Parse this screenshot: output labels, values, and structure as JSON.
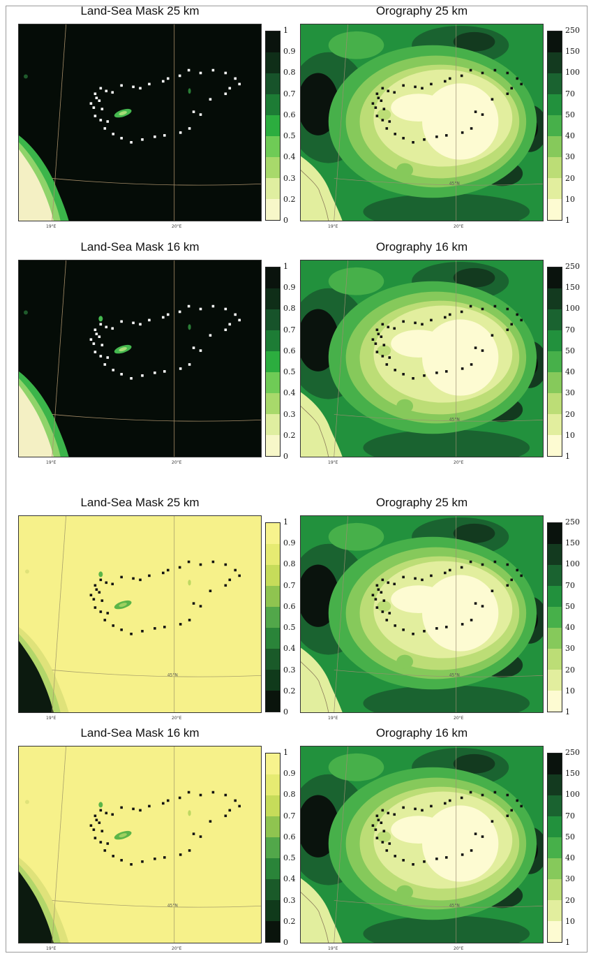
{
  "panels": [
    {
      "title": "Land-Sea Mask 25 km",
      "kind": "mask",
      "theme": "dark",
      "lon_labels": [
        "19°E",
        "20°E"
      ],
      "lat_label": ""
    },
    {
      "title": "Orography 25 km",
      "kind": "oro",
      "theme": "green",
      "lon_labels": [
        "19°E",
        "20°E"
      ],
      "lat_label": "45°N"
    },
    {
      "title": "Land-Sea Mask 16 km",
      "kind": "mask",
      "theme": "dark",
      "lon_labels": [
        "19°E",
        "20°E"
      ],
      "lat_label": ""
    },
    {
      "title": "Orography 16 km",
      "kind": "oro",
      "theme": "green",
      "lon_labels": [
        "19°E",
        "20°E"
      ],
      "lat_label": "45°N"
    },
    {
      "title": "Land-Sea Mask 25 km",
      "kind": "mask",
      "theme": "light",
      "lon_labels": [
        "19°E",
        "20°E"
      ],
      "lat_label": "45°N"
    },
    {
      "title": "Orography 25 km",
      "kind": "oro",
      "theme": "green",
      "lon_labels": [
        "19°E",
        "20°E"
      ],
      "lat_label": "45°N"
    },
    {
      "title": "Land-Sea Mask 16 km",
      "kind": "mask",
      "theme": "light",
      "lon_labels": [
        "19°E",
        "20°E"
      ],
      "lat_label": "45°N"
    },
    {
      "title": "Orography 16 km",
      "kind": "oro",
      "theme": "green",
      "lon_labels": [
        "19°E",
        "20°E"
      ],
      "lat_label": "45°N"
    }
  ],
  "colorbars": {
    "mask_ticks": [
      "1",
      "0.9",
      "0.8",
      "0.7",
      "0.6",
      "0.5",
      "0.4",
      "0.3",
      "0.2",
      "0"
    ],
    "mask_dark_colors": [
      "#0a130d",
      "#0f2e18",
      "#17532a",
      "#1d7c35",
      "#2cad3f",
      "#6fcb56",
      "#a8d96b",
      "#dfeea0",
      "#f7f7c9"
    ],
    "mask_light_colors": [
      "#f7f38d",
      "#e6eb72",
      "#c6dc5a",
      "#8fc450",
      "#52a74a",
      "#2a8439",
      "#1a5a29",
      "#103a1b",
      "#0a140c"
    ],
    "oro_ticks": [
      "250",
      "150",
      "100",
      "70",
      "50",
      "40",
      "30",
      "20",
      "10",
      "1"
    ],
    "oro_colors": [
      "#0a130d",
      "#133a1f",
      "#1a6330",
      "#22913d",
      "#47b04a",
      "#86c95b",
      "#bcdd76",
      "#e2ee9e",
      "#fdfbd2"
    ]
  },
  "station_marker_colors": {
    "dark": "#ffffff",
    "light": "#111111",
    "green": "#111111"
  }
}
